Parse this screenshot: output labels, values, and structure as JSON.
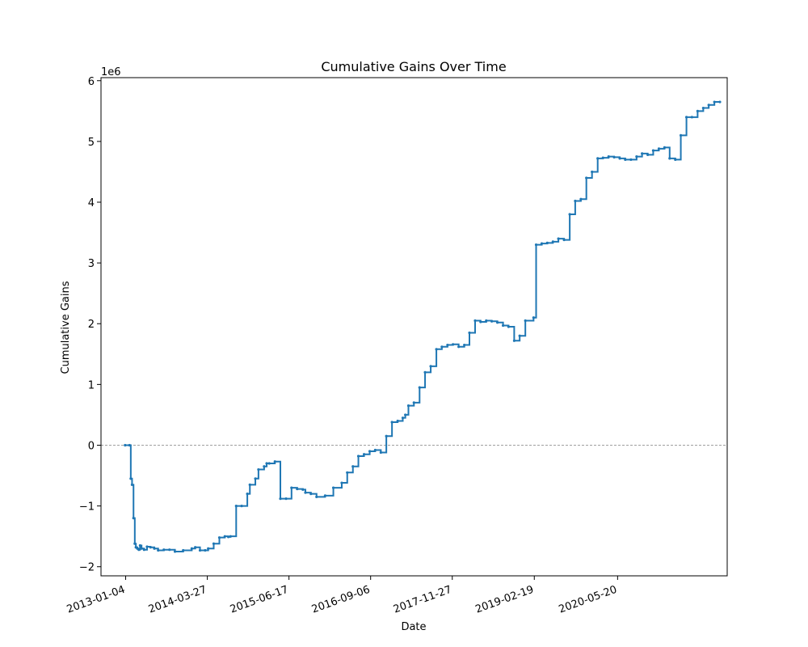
{
  "chart_data": {
    "type": "line",
    "title": "Cumulative Gains Over Time",
    "xlabel": "Date",
    "ylabel": "Cumulative Gains",
    "y_scale_label": "1e6",
    "ylim": [
      -2.15,
      6.05
    ],
    "xlim": [
      "2012-08-22",
      "2022-01-10"
    ],
    "x_ticks": [
      "2013-01-04",
      "2014-03-27",
      "2015-06-17",
      "2016-09-06",
      "2017-11-27",
      "2019-02-19",
      "2020-05-20"
    ],
    "y_ticks": [
      -2,
      -1,
      0,
      1,
      2,
      3,
      4,
      5,
      6
    ],
    "reference_line": {
      "y": 0,
      "style": "dashed",
      "color": "#808080"
    },
    "grid": false,
    "line_color": "#1f77b4",
    "series": [
      {
        "x": [
          "2013-01-01",
          "2013-01-25",
          "2013-02-01",
          "2013-02-08",
          "2013-02-16",
          "2013-02-23",
          "2013-03-01",
          "2013-03-09",
          "2013-03-17",
          "2013-03-24",
          "2013-04-01",
          "2013-04-15",
          "2013-05-01",
          "2013-05-20",
          "2013-06-10",
          "2013-07-01",
          "2013-08-01",
          "2013-09-01",
          "2013-10-01",
          "2013-11-15",
          "2014-01-01",
          "2014-01-20",
          "2014-02-15",
          "2014-03-15",
          "2014-04-01",
          "2014-05-01",
          "2014-06-01",
          "2014-07-01",
          "2014-07-20",
          "2014-08-01",
          "2014-09-01",
          "2014-10-01",
          "2014-11-01",
          "2014-11-15",
          "2014-12-15",
          "2015-01-01",
          "2015-02-01",
          "2015-02-15",
          "2015-03-01",
          "2015-04-01",
          "2015-05-01",
          "2015-06-01",
          "2015-07-01",
          "2015-08-01",
          "2015-09-01",
          "2015-09-15",
          "2015-10-15",
          "2015-11-15",
          "2016-01-01",
          "2016-02-15",
          "2016-04-01",
          "2016-05-01",
          "2016-06-01",
          "2016-07-01",
          "2016-08-01",
          "2016-09-01",
          "2016-10-01",
          "2016-11-01",
          "2016-12-01",
          "2017-01-01",
          "2017-02-01",
          "2017-03-01",
          "2017-03-15",
          "2017-04-01",
          "2017-05-01",
          "2017-06-01",
          "2017-07-01",
          "2017-08-01",
          "2017-09-01",
          "2017-10-01",
          "2017-11-01",
          "2017-12-01",
          "2018-01-01",
          "2018-02-01",
          "2018-03-01",
          "2018-04-01",
          "2018-05-01",
          "2018-06-01",
          "2018-07-01",
          "2018-08-01",
          "2018-09-01",
          "2018-10-01",
          "2018-11-01",
          "2018-12-01",
          "2019-01-01",
          "2019-02-15",
          "2019-03-01",
          "2019-04-01",
          "2019-05-01",
          "2019-06-01",
          "2019-07-01",
          "2019-08-01",
          "2019-09-01",
          "2019-10-01",
          "2019-11-01",
          "2019-12-01",
          "2020-01-01",
          "2020-02-01",
          "2020-03-01",
          "2020-04-01",
          "2020-05-01",
          "2020-06-01",
          "2020-07-01",
          "2020-08-01",
          "2020-09-01",
          "2020-10-01",
          "2020-11-01",
          "2020-12-01",
          "2021-01-01",
          "2021-02-01",
          "2021-03-01",
          "2021-04-01",
          "2021-05-01",
          "2021-06-01",
          "2021-07-01",
          "2021-08-01",
          "2021-09-01",
          "2021-10-01",
          "2021-11-01",
          "2021-12-01"
        ],
        "values": [
          0,
          0,
          -0.55,
          -0.65,
          -1.2,
          -1.62,
          -1.68,
          -1.7,
          -1.72,
          -1.65,
          -1.7,
          -1.72,
          -1.67,
          -1.68,
          -1.7,
          -1.73,
          -1.72,
          -1.72,
          -1.75,
          -1.73,
          -1.7,
          -1.68,
          -1.73,
          -1.73,
          -1.7,
          -1.62,
          -1.52,
          -1.5,
          -1.51,
          -1.5,
          -1.0,
          -1.0,
          -0.8,
          -0.65,
          -0.55,
          -0.4,
          -0.35,
          -0.3,
          -0.3,
          -0.27,
          -0.88,
          -0.88,
          -0.7,
          -0.72,
          -0.73,
          -0.78,
          -0.8,
          -0.85,
          -0.83,
          -0.7,
          -0.62,
          -0.45,
          -0.35,
          -0.18,
          -0.15,
          -0.1,
          -0.08,
          -0.12,
          0.15,
          0.38,
          0.4,
          0.45,
          0.5,
          0.65,
          0.7,
          0.95,
          1.2,
          1.3,
          1.58,
          1.62,
          1.65,
          1.66,
          1.62,
          1.65,
          1.85,
          2.05,
          2.03,
          2.05,
          2.04,
          2.02,
          1.97,
          1.95,
          1.72,
          1.8,
          2.05,
          2.1,
          3.3,
          3.32,
          3.33,
          3.35,
          3.4,
          3.38,
          3.8,
          4.02,
          4.05,
          4.4,
          4.5,
          4.72,
          4.73,
          4.75,
          4.74,
          4.72,
          4.7,
          4.7,
          4.75,
          4.8,
          4.78,
          4.85,
          4.88,
          4.9,
          4.72,
          4.7,
          5.1,
          5.4,
          5.4,
          5.5,
          5.55,
          5.6,
          5.65,
          5.65
        ]
      }
    ]
  }
}
